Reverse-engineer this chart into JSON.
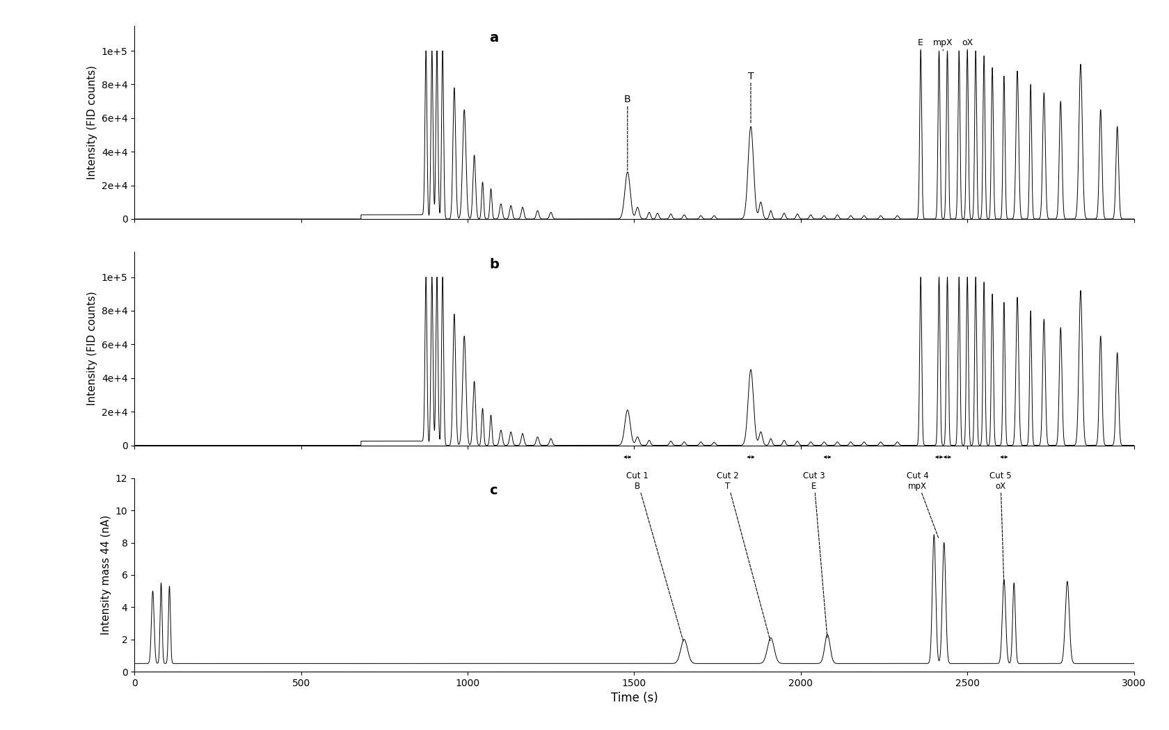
{
  "fig_bg": "#ffffff",
  "axes_bg": "#ffffff",
  "line_color": "#000000",
  "label_a": "a",
  "label_b": "b",
  "label_c": "c",
  "xlabel": "Time (s)",
  "ylabel_ab": "Intensity (FID counts)",
  "ylabel_c": "Intensity mass 44 (nA)",
  "xlim": [
    0,
    3000
  ],
  "ylim_ab": [
    0,
    115000
  ],
  "ylim_c": [
    0,
    12
  ],
  "yticks_ab": [
    0,
    20000,
    40000,
    60000,
    80000,
    100000
  ],
  "ytick_labels_ab": [
    "0",
    "2e+4",
    "4e+4",
    "6e+4",
    "8e+4",
    "1e+5"
  ],
  "yticks_c": [
    0,
    2,
    4,
    6,
    8,
    10,
    12
  ],
  "xticks": [
    0,
    500,
    1000,
    1500,
    2000,
    2500,
    3000
  ]
}
